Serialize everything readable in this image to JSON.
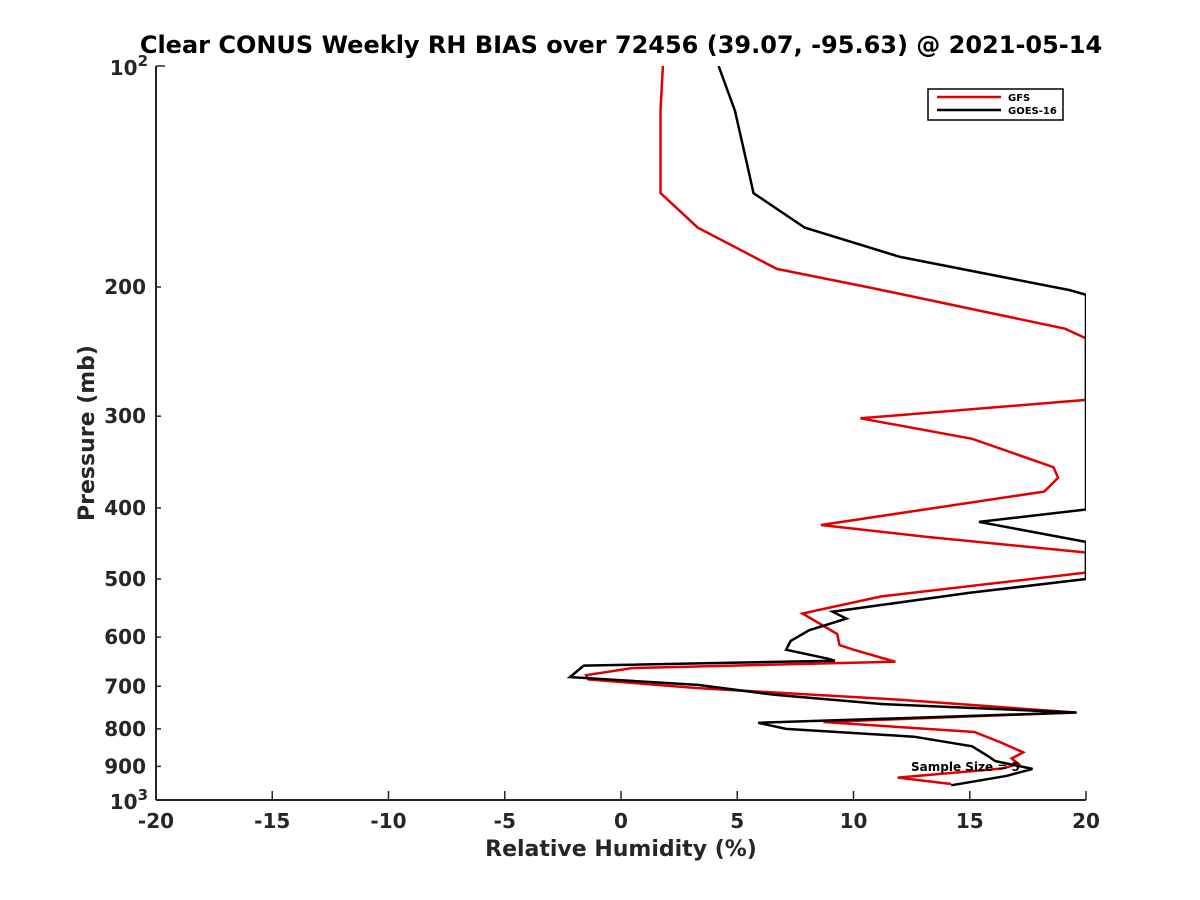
{
  "chart_data": {
    "type": "line",
    "title": "Clear CONUS Weekly RH BIAS over 72456 (39.07, -95.63) @ 2021-05-14",
    "xlabel": "Relative Humidity (%)",
    "ylabel": "Pressure (mb)",
    "xlim": [
      -20,
      20
    ],
    "ylim": [
      100,
      1000
    ],
    "yscale": "log",
    "y_reversed": true,
    "grid": false,
    "x_ticks": [
      -20,
      -15,
      -10,
      -5,
      0,
      5,
      10,
      15,
      20
    ],
    "x_tick_labels": [
      "-20",
      "-15",
      "-10",
      "-5",
      "0",
      "5",
      "10",
      "15",
      "20"
    ],
    "y_ticks": [
      200,
      300,
      400,
      500,
      600,
      700,
      800,
      900
    ],
    "y_tick_labels": [
      "200",
      "300",
      "400",
      "500",
      "600",
      "700",
      "800",
      "900"
    ],
    "y_power_ticks": [
      {
        "value": 100,
        "base": "10",
        "exp": "2"
      },
      {
        "value": 1000,
        "base": "10",
        "exp": "3"
      }
    ],
    "legend_position": "top-right",
    "annotation": "Sample Size = 5",
    "series": [
      {
        "name": "GFS",
        "color": "#e00000",
        "points": [
          [
            1.8,
            100
          ],
          [
            1.7,
            115
          ],
          [
            1.7,
            135
          ],
          [
            1.7,
            149
          ],
          [
            3.3,
            166
          ],
          [
            6.7,
            189
          ],
          [
            10.9,
            201
          ],
          [
            19.1,
            228
          ],
          [
            20,
            235
          ],
          [
            20,
            285
          ],
          [
            10.3,
            302
          ],
          [
            15.1,
            322
          ],
          [
            18.6,
            352
          ],
          [
            18.8,
            364
          ],
          [
            18.2,
            380
          ],
          [
            8.6,
            422
          ],
          [
            13.1,
            438
          ],
          [
            20,
            460
          ],
          [
            20,
            490
          ],
          [
            11.2,
            528
          ],
          [
            7.8,
            557
          ],
          [
            8.5,
            574
          ],
          [
            9.3,
            594
          ],
          [
            9.4,
            615
          ],
          [
            10,
            624
          ],
          [
            11.8,
            648
          ],
          [
            0.5,
            661
          ],
          [
            -1.5,
            676
          ],
          [
            -1.4,
            685
          ],
          [
            3.3,
            704
          ],
          [
            12,
            730
          ],
          [
            19.5,
            760
          ],
          [
            8.7,
            783
          ],
          [
            15.2,
            808
          ],
          [
            16.3,
            834
          ],
          [
            17.3,
            861
          ],
          [
            16.8,
            878
          ],
          [
            17.1,
            893
          ],
          [
            16.4,
            906
          ],
          [
            11.9,
            932
          ],
          [
            14.2,
            951
          ]
        ]
      },
      {
        "name": "GOES-16",
        "color": "#000000",
        "points": [
          [
            4.2,
            100
          ],
          [
            4.9,
            115
          ],
          [
            5.4,
            135
          ],
          [
            5.7,
            149
          ],
          [
            7.9,
            166
          ],
          [
            12,
            182
          ],
          [
            19.3,
            202
          ],
          [
            20,
            205
          ],
          [
            20,
            402
          ],
          [
            15.4,
            418
          ],
          [
            20,
            445
          ],
          [
            20,
            500
          ],
          [
            15,
            522
          ],
          [
            9.1,
            554
          ],
          [
            9.7,
            566
          ],
          [
            8.1,
            587
          ],
          [
            7.3,
            607
          ],
          [
            7.1,
            624
          ],
          [
            8.9,
            642
          ],
          [
            9.2,
            646
          ],
          [
            -1.6,
            656
          ],
          [
            -2.2,
            680
          ],
          [
            3.3,
            697
          ],
          [
            6.6,
            719
          ],
          [
            11.2,
            740
          ],
          [
            19.6,
            760
          ],
          [
            5.9,
            785
          ],
          [
            7.1,
            800
          ],
          [
            12.6,
            820
          ],
          [
            15.1,
            845
          ],
          [
            15.8,
            872
          ],
          [
            16.1,
            885
          ],
          [
            17.7,
            907
          ],
          [
            16.6,
            927
          ],
          [
            14.2,
            955
          ]
        ]
      }
    ]
  }
}
